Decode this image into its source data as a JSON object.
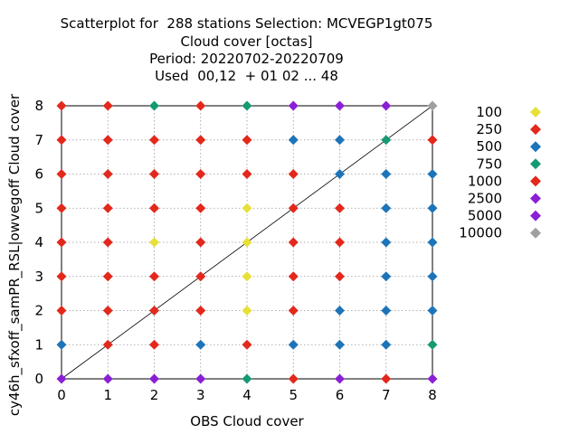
{
  "chart_data": {
    "type": "scatter",
    "title_lines": [
      "Scatterplot for  288 stations Selection: MCVEGP1gt075",
      "Cloud cover [octas]",
      "Period: 20220702-20220709",
      "Used  00,12  + 01 02 ... 48"
    ],
    "xlabel": "OBS Cloud cover",
    "ylabel": "cy46h_sfxoff_samPR_RSL|owvegoff Cloud cover",
    "xlim": [
      0,
      8
    ],
    "ylim": [
      0,
      8
    ],
    "x_ticks": [
      "0",
      "1",
      "2",
      "3",
      "4",
      "5",
      "6",
      "7",
      "8"
    ],
    "y_ticks": [
      "0",
      "1",
      "2",
      "3",
      "4",
      "5",
      "6",
      "7",
      "8"
    ],
    "grid": true,
    "diagonal_line": true,
    "legend_position": "right",
    "legend": [
      {
        "label": "100",
        "color": "#e8e03a"
      },
      {
        "label": "250",
        "color": "#e3281c"
      },
      {
        "label": "500",
        "color": "#1d74b8"
      },
      {
        "label": "750",
        "color": "#159a72"
      },
      {
        "label": "1000",
        "color": "#e3281c"
      },
      {
        "label": "2500",
        "color": "#8b1fd6"
      },
      {
        "label": "5000",
        "color": "#8b1fd6"
      },
      {
        "label": "10000",
        "color": "#a0a0a0"
      }
    ],
    "points": [
      [
        0,
        0,
        "#8b1fd6"
      ],
      [
        1,
        0,
        "#8b1fd6"
      ],
      [
        2,
        0,
        "#8b1fd6"
      ],
      [
        3,
        0,
        "#8b1fd6"
      ],
      [
        4,
        0,
        "#159a72"
      ],
      [
        5,
        0,
        "#e3281c"
      ],
      [
        6,
        0,
        "#8b1fd6"
      ],
      [
        7,
        0,
        "#e3281c"
      ],
      [
        8,
        0,
        "#8b1fd6"
      ],
      [
        0,
        1,
        "#1d74b8"
      ],
      [
        1,
        1,
        "#e3281c"
      ],
      [
        2,
        1,
        "#e3281c"
      ],
      [
        3,
        1,
        "#1d74b8"
      ],
      [
        4,
        1,
        "#e3281c"
      ],
      [
        5,
        1,
        "#1d74b8"
      ],
      [
        6,
        1,
        "#1d74b8"
      ],
      [
        7,
        1,
        "#1d74b8"
      ],
      [
        8,
        1,
        "#159a72"
      ],
      [
        0,
        2,
        "#e3281c"
      ],
      [
        1,
        2,
        "#e3281c"
      ],
      [
        2,
        2,
        "#e3281c"
      ],
      [
        3,
        2,
        "#e3281c"
      ],
      [
        4,
        2,
        "#e8e03a"
      ],
      [
        5,
        2,
        "#e3281c"
      ],
      [
        6,
        2,
        "#1d74b8"
      ],
      [
        7,
        2,
        "#1d74b8"
      ],
      [
        8,
        2,
        "#1d74b8"
      ],
      [
        0,
        3,
        "#e3281c"
      ],
      [
        1,
        3,
        "#e3281c"
      ],
      [
        2,
        3,
        "#e3281c"
      ],
      [
        3,
        3,
        "#e3281c"
      ],
      [
        4,
        3,
        "#e8e03a"
      ],
      [
        5,
        3,
        "#e3281c"
      ],
      [
        6,
        3,
        "#e3281c"
      ],
      [
        7,
        3,
        "#1d74b8"
      ],
      [
        8,
        3,
        "#1d74b8"
      ],
      [
        0,
        4,
        "#e3281c"
      ],
      [
        1,
        4,
        "#e3281c"
      ],
      [
        2,
        4,
        "#e8e03a"
      ],
      [
        3,
        4,
        "#e3281c"
      ],
      [
        4,
        4,
        "#e8e03a"
      ],
      [
        5,
        4,
        "#e3281c"
      ],
      [
        6,
        4,
        "#e3281c"
      ],
      [
        7,
        4,
        "#1d74b8"
      ],
      [
        8,
        4,
        "#1d74b8"
      ],
      [
        0,
        5,
        "#e3281c"
      ],
      [
        1,
        5,
        "#e3281c"
      ],
      [
        2,
        5,
        "#e3281c"
      ],
      [
        3,
        5,
        "#e3281c"
      ],
      [
        4,
        5,
        "#e8e03a"
      ],
      [
        5,
        5,
        "#e3281c"
      ],
      [
        6,
        5,
        "#e3281c"
      ],
      [
        7,
        5,
        "#1d74b8"
      ],
      [
        8,
        5,
        "#1d74b8"
      ],
      [
        0,
        6,
        "#e3281c"
      ],
      [
        1,
        6,
        "#e3281c"
      ],
      [
        2,
        6,
        "#e3281c"
      ],
      [
        3,
        6,
        "#e3281c"
      ],
      [
        4,
        6,
        "#e3281c"
      ],
      [
        5,
        6,
        "#e3281c"
      ],
      [
        6,
        6,
        "#1d74b8"
      ],
      [
        7,
        6,
        "#1d74b8"
      ],
      [
        8,
        6,
        "#1d74b8"
      ],
      [
        0,
        7,
        "#e3281c"
      ],
      [
        1,
        7,
        "#e3281c"
      ],
      [
        2,
        7,
        "#e3281c"
      ],
      [
        3,
        7,
        "#e3281c"
      ],
      [
        4,
        7,
        "#e3281c"
      ],
      [
        5,
        7,
        "#1d74b8"
      ],
      [
        6,
        7,
        "#1d74b8"
      ],
      [
        7,
        7,
        "#159a72"
      ],
      [
        8,
        7,
        "#e3281c"
      ],
      [
        0,
        8,
        "#e3281c"
      ],
      [
        1,
        8,
        "#e3281c"
      ],
      [
        2,
        8,
        "#159a72"
      ],
      [
        3,
        8,
        "#e3281c"
      ],
      [
        4,
        8,
        "#159a72"
      ],
      [
        5,
        8,
        "#8b1fd6"
      ],
      [
        6,
        8,
        "#8b1fd6"
      ],
      [
        7,
        8,
        "#8b1fd6"
      ],
      [
        8,
        8,
        "#a0a0a0"
      ]
    ]
  }
}
